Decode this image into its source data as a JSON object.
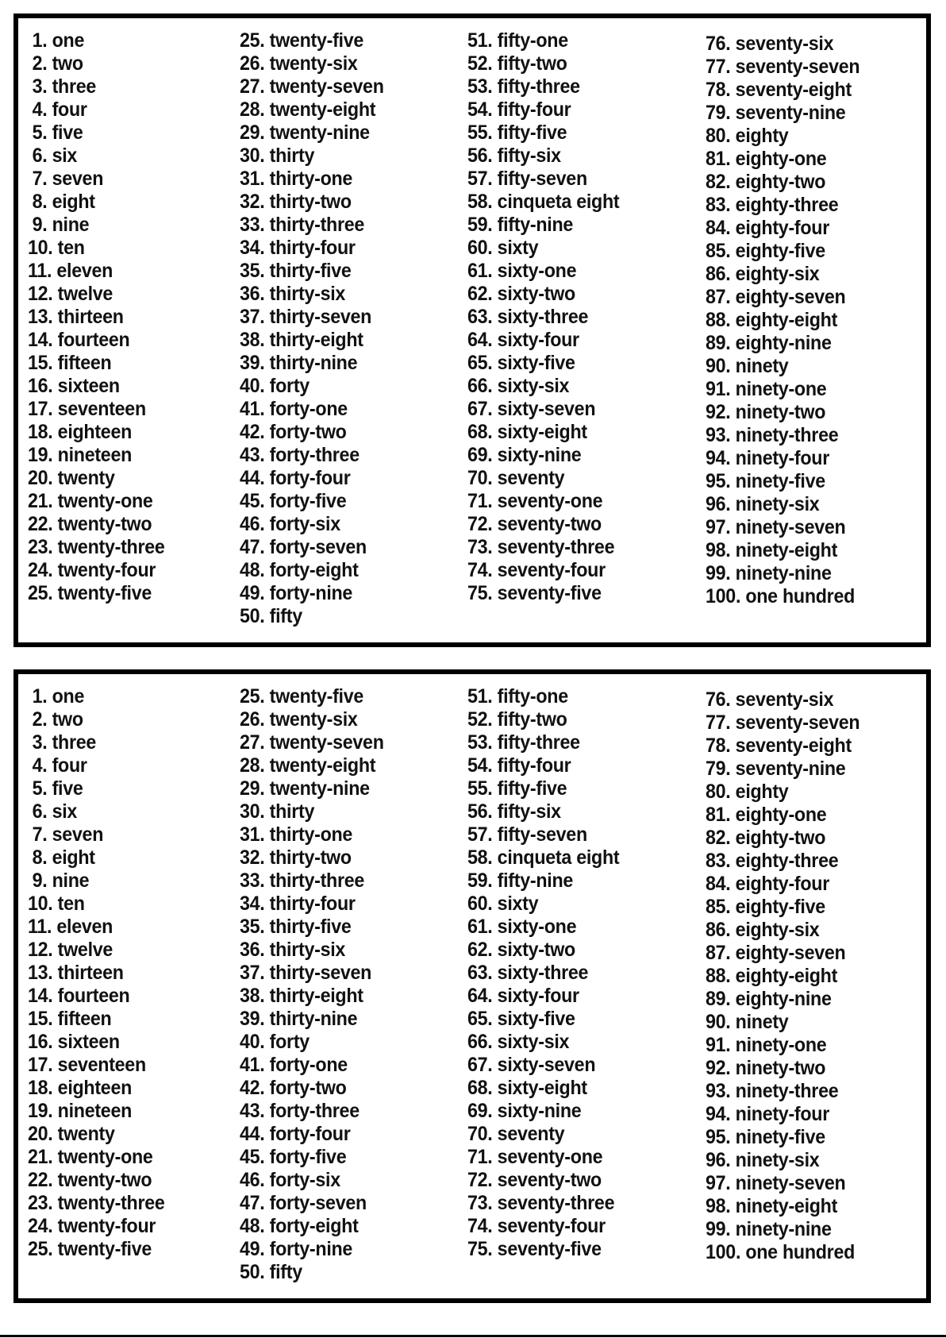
{
  "boxes": [
    {
      "columns": [
        [
          "1. one",
          "2. two",
          "3. three",
          "4. four",
          "5. five",
          "6. six",
          "7. seven",
          "8. eight",
          "9. nine",
          "10. ten",
          "11. eleven",
          "12. twelve",
          "13. thirteen",
          "14. fourteen",
          "15. fifteen",
          "16. sixteen",
          "17. seventeen",
          "18. eighteen",
          "19. nineteen",
          "20. twenty",
          "21. twenty-one",
          "22. twenty-two",
          "23. twenty-three",
          "24. twenty-four",
          "25. twenty-five"
        ],
        [
          "25. twenty-five",
          "26. twenty-six",
          "27. twenty-seven",
          "28. twenty-eight",
          "29. twenty-nine",
          "30. thirty",
          "31. thirty-one",
          "32. thirty-two",
          "33. thirty-three",
          "34. thirty-four",
          "35. thirty-five",
          "36. thirty-six",
          "37. thirty-seven",
          "38. thirty-eight",
          "39. thirty-nine",
          "40. forty",
          "41. forty-one",
          "42. forty-two",
          "43. forty-three",
          "44. forty-four",
          "45. forty-five",
          "46. forty-six",
          "47. forty-seven",
          "48. forty-eight",
          "49. forty-nine",
          "50. fifty"
        ],
        [
          "51. fifty-one",
          "52. fifty-two",
          "53. fifty-three",
          "54. fifty-four",
          "55. fifty-five",
          "56. fifty-six",
          "57. fifty-seven",
          "58. cinqueta eight",
          "59. fifty-nine",
          "60. sixty",
          "61. sixty-one",
          "62. sixty-two",
          "63. sixty-three",
          "64. sixty-four",
          "65. sixty-five",
          "66. sixty-six",
          "67. sixty-seven",
          "68. sixty-eight",
          "69. sixty-nine",
          "70. seventy",
          "71. seventy-one",
          "72. seventy-two",
          "73. seventy-three",
          "74. seventy-four",
          "75. seventy-five"
        ],
        [
          "76. seventy-six",
          "77. seventy-seven",
          "78. seventy-eight",
          "79. seventy-nine",
          "80. eighty",
          "81. eighty-one",
          "82. eighty-two",
          "83. eighty-three",
          "84. eighty-four",
          "85. eighty-five",
          "86. eighty-six",
          "87. eighty-seven",
          "88. eighty-eight",
          "89. eighty-nine",
          "90. ninety",
          "91. ninety-one",
          "92. ninety-two",
          "93. ninety-three",
          "94. ninety-four",
          "95. ninety-five",
          "96. ninety-six",
          "97. ninety-seven",
          "98. ninety-eight",
          "99. ninety-nine",
          "100. one hundred"
        ]
      ]
    },
    {
      "columns": [
        [
          "1. one",
          "2. two",
          "3. three",
          "4. four",
          "5. five",
          "6. six",
          "7. seven",
          "8. eight",
          "9. nine",
          "10. ten",
          "11. eleven",
          "12. twelve",
          "13. thirteen",
          "14. fourteen",
          "15. fifteen",
          "16. sixteen",
          "17. seventeen",
          "18. eighteen",
          "19. nineteen",
          "20. twenty",
          "21. twenty-one",
          "22. twenty-two",
          "23. twenty-three",
          "24. twenty-four",
          "25. twenty-five"
        ],
        [
          "25. twenty-five",
          "26. twenty-six",
          "27. twenty-seven",
          "28. twenty-eight",
          "29. twenty-nine",
          "30. thirty",
          "31. thirty-one",
          "32. thirty-two",
          "33. thirty-three",
          "34. thirty-four",
          "35. thirty-five",
          "36. thirty-six",
          "37. thirty-seven",
          "38. thirty-eight",
          "39. thirty-nine",
          "40. forty",
          "41. forty-one",
          "42. forty-two",
          "43. forty-three",
          "44. forty-four",
          "45. forty-five",
          "46. forty-six",
          "47. forty-seven",
          "48. forty-eight",
          "49. forty-nine",
          "50. fifty"
        ],
        [
          "51. fifty-one",
          "52. fifty-two",
          "53. fifty-three",
          "54. fifty-four",
          "55. fifty-five",
          "56. fifty-six",
          "57. fifty-seven",
          "58. cinqueta eight",
          "59. fifty-nine",
          "60. sixty",
          "61. sixty-one",
          "62. sixty-two",
          "63. sixty-three",
          "64. sixty-four",
          "65. sixty-five",
          "66. sixty-six",
          "67. sixty-seven",
          "68. sixty-eight",
          "69. sixty-nine",
          "70. seventy",
          "71. seventy-one",
          "72. seventy-two",
          "73. seventy-three",
          "74. seventy-four",
          "75. seventy-five"
        ],
        [
          "76. seventy-six",
          "77. seventy-seven",
          "78. seventy-eight",
          "79. seventy-nine",
          "80. eighty",
          "81. eighty-one",
          "82. eighty-two",
          "83. eighty-three",
          "84. eighty-four",
          "85. eighty-five",
          "86. eighty-six",
          "87. eighty-seven",
          "88. eighty-eight",
          "89. eighty-nine",
          "90. ninety",
          "91. ninety-one",
          "92. ninety-two",
          "93. ninety-three",
          "94. ninety-four",
          "95. ninety-five",
          "96. ninety-six",
          "97. ninety-seven",
          "98. ninety-eight",
          "99. ninety-nine",
          "100. one hundred"
        ]
      ]
    }
  ]
}
